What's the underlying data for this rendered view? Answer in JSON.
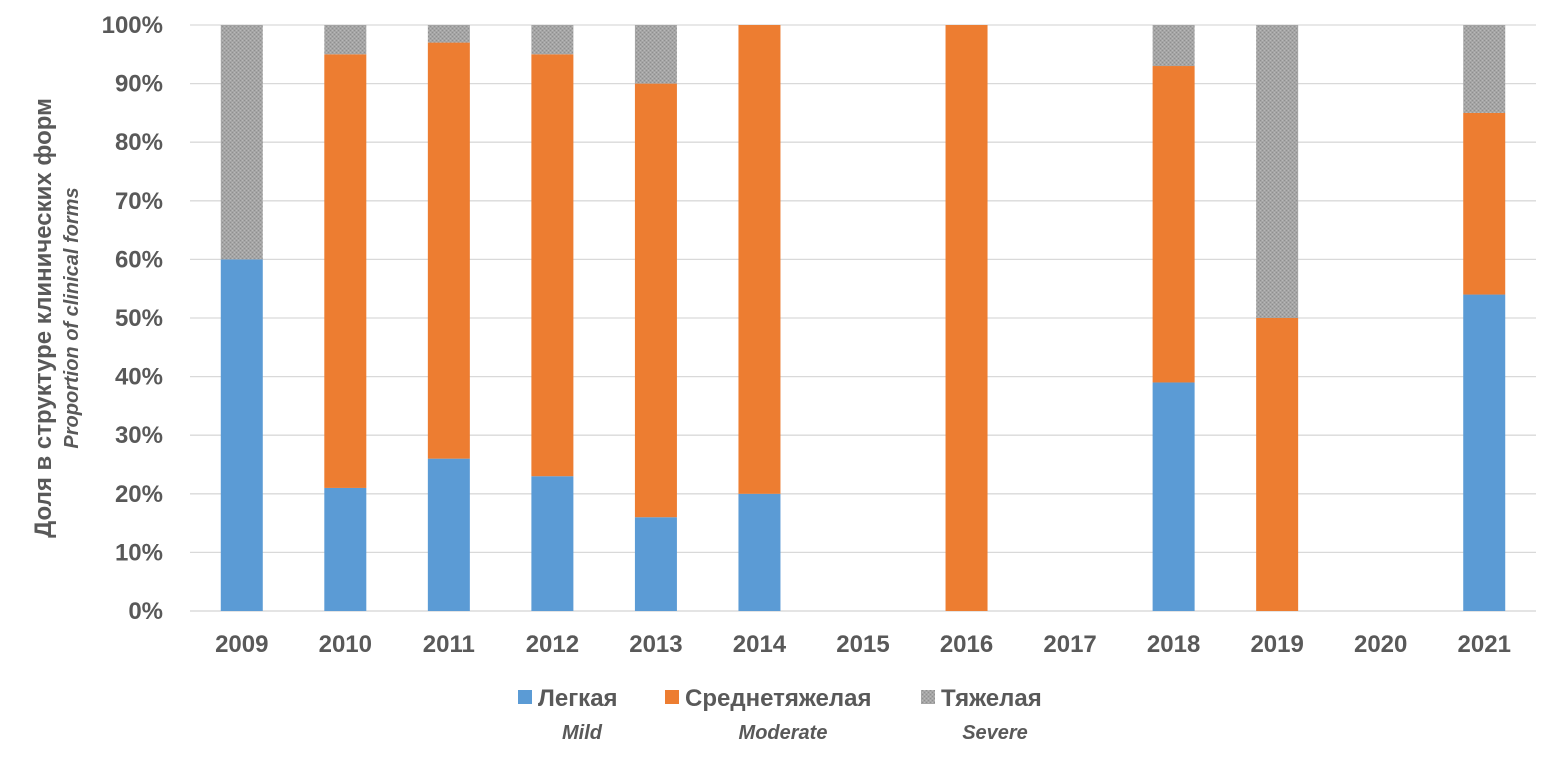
{
  "chart_data": {
    "type": "bar",
    "stacked": true,
    "categories": [
      "2009",
      "2010",
      "2011",
      "2012",
      "2013",
      "2014",
      "2015",
      "2016",
      "2017",
      "2018",
      "2019",
      "2020",
      "2021"
    ],
    "series": [
      {
        "name": "Легкая",
        "name_en": "Mild",
        "color": "#5B9BD5",
        "values": [
          0.6,
          0.21,
          0.26,
          0.23,
          0.16,
          0.2,
          0,
          0,
          0,
          0.39,
          0,
          0,
          0.54
        ]
      },
      {
        "name": "Среднетяжелая",
        "name_en": "Moderate",
        "color": "#ED7D31",
        "values": [
          0,
          0.74,
          0.71,
          0.72,
          0.74,
          0.8,
          0,
          1.0,
          0,
          0.54,
          0.5,
          0,
          0.31
        ]
      },
      {
        "name": "Тяжелая",
        "name_en": "Severe",
        "color": "#A5A5A5",
        "values": [
          0.4,
          0.05,
          0.03,
          0.05,
          0.1,
          0,
          0,
          0,
          0,
          0.07,
          0.5,
          0,
          0.15
        ]
      }
    ],
    "ylabel": "Доля в структуре клинических форм",
    "ylabel_en": "Proportion of clinical forms",
    "yticks": [
      "0%",
      "10%",
      "20%",
      "30%",
      "40%",
      "50%",
      "60%",
      "70%",
      "80%",
      "90%",
      "100%"
    ],
    "ylim": [
      0,
      1
    ],
    "grid": true,
    "legend_position": "bottom"
  }
}
